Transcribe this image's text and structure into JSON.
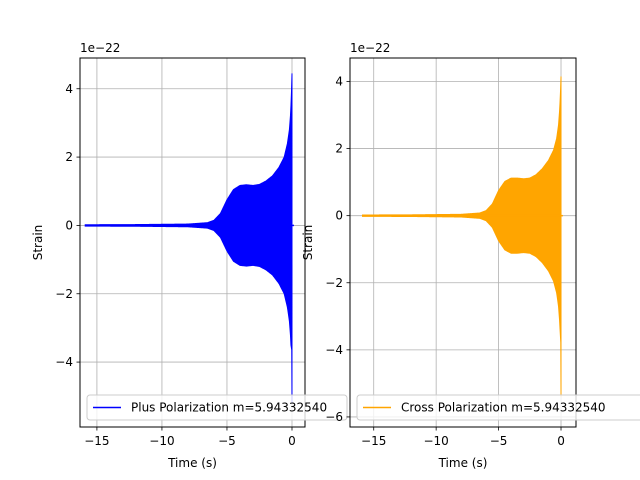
{
  "chart_data": [
    {
      "type": "line",
      "xlabel": "Time (s)",
      "ylabel": "Strain",
      "offset_text": "1e−22",
      "xlim": [
        -16.3,
        1.0
      ],
      "ylim": [
        -5.9,
        4.9
      ],
      "xticks": [
        -15,
        -10,
        -5,
        0
      ],
      "xtick_labels": [
        "−15",
        "−10",
        "−5",
        "0"
      ],
      "yticks": [
        -4,
        -2,
        0,
        2,
        4
      ],
      "ytick_labels": [
        "−4",
        "−2",
        "0",
        "2",
        "4"
      ],
      "grid": true,
      "legend_position": "lower-left",
      "series": [
        {
          "name": "Plus Polarization m=5.94332540",
          "color": "#0000ff",
          "envelope": {
            "t": [
              -15.9,
              -12,
              -8,
              -6.5,
              -6,
              -5.5,
              -5,
              -4.5,
              -4,
              -3.5,
              -3,
              -2.5,
              -2,
              -1.5,
              -1,
              -0.6,
              -0.35,
              -0.2,
              -0.1,
              -0.03,
              0
            ],
            "amp": [
              0.02,
              0.025,
              0.04,
              0.08,
              0.15,
              0.35,
              0.75,
              1.05,
              1.17,
              1.19,
              1.17,
              1.2,
              1.3,
              1.45,
              1.7,
              2.0,
              2.4,
              2.8,
              3.3,
              4.0,
              4.45
            ]
          },
          "min_peak": -5.2,
          "ringdown_end": 0.15
        }
      ]
    },
    {
      "type": "line",
      "xlabel": "Time (s)",
      "ylabel": "Strain",
      "offset_text": "1e−22",
      "xlim": [
        -16.9,
        1.2
      ],
      "ylim": [
        -6.3,
        4.7
      ],
      "xticks": [
        -15,
        -10,
        -5,
        0
      ],
      "xtick_labels": [
        "−15",
        "−10",
        "−5",
        "0"
      ],
      "yticks": [
        -6,
        -4,
        -2,
        0,
        2,
        4
      ],
      "ytick_labels": [
        "−6",
        "−4",
        "−2",
        "0",
        "2",
        "4"
      ],
      "grid": true,
      "legend_position": "lower-left",
      "series": [
        {
          "name": "Cross Polarization m=5.94332540",
          "color": "#ffa500",
          "envelope": {
            "t": [
              -15.9,
              -12,
              -8,
              -6.5,
              -6,
              -5.5,
              -5,
              -4.5,
              -4,
              -3.5,
              -3,
              -2.5,
              -2,
              -1.5,
              -1,
              -0.6,
              -0.35,
              -0.2,
              -0.1,
              -0.03,
              0
            ],
            "amp": [
              0.02,
              0.025,
              0.04,
              0.08,
              0.15,
              0.35,
              0.75,
              1.02,
              1.12,
              1.12,
              1.1,
              1.12,
              1.22,
              1.4,
              1.65,
              1.95,
              2.3,
              2.7,
              3.2,
              3.8,
              4.15
            ]
          },
          "min_peak": -5.4,
          "ringdown_end": 0.15
        }
      ]
    }
  ]
}
